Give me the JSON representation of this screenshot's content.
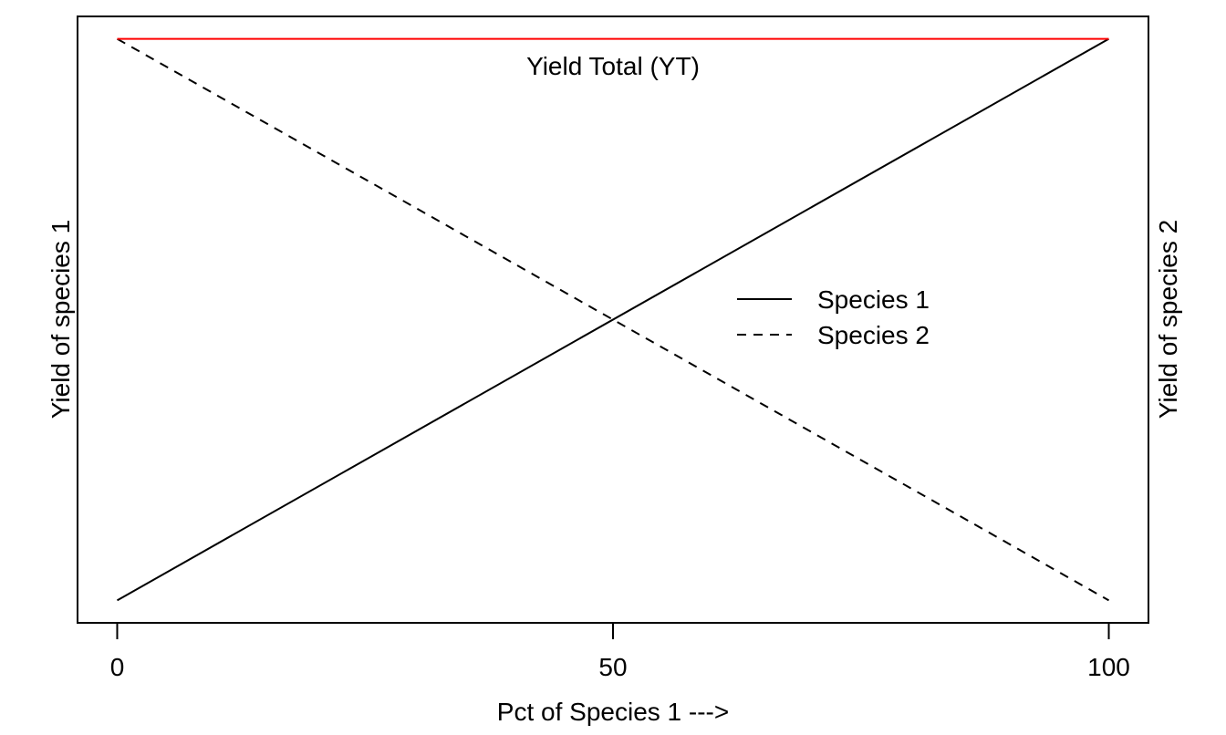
{
  "chart_data": {
    "type": "line",
    "xlabel": "Pct of Species 1 --->",
    "ylabel_left": "Yield of species 1",
    "ylabel_right": "Yield of species 2",
    "xlim": [
      -4,
      104
    ],
    "ylim": [
      -0.04,
      1.04
    ],
    "x_ticks": [
      0,
      50,
      100
    ],
    "y_ticks_shown": false,
    "grid": false,
    "legend": {
      "placement": "center-right",
      "entries": [
        "Species 1",
        "Species 2"
      ]
    },
    "annotations": [
      {
        "text": "Yield Total (YT)",
        "x": 50,
        "y": 0.955
      }
    ],
    "series": [
      {
        "name": "Species 1",
        "x": [
          0,
          100
        ],
        "y": [
          0,
          1
        ],
        "style": "solid",
        "color": "#000000"
      },
      {
        "name": "Species 2",
        "x": [
          0,
          100
        ],
        "y": [
          1,
          0
        ],
        "style": "dashed",
        "color": "#000000"
      },
      {
        "name": "Yield Total (YT)",
        "x": [
          0,
          100
        ],
        "y": [
          1,
          1
        ],
        "style": "solid",
        "color": "#ff0000"
      }
    ]
  }
}
